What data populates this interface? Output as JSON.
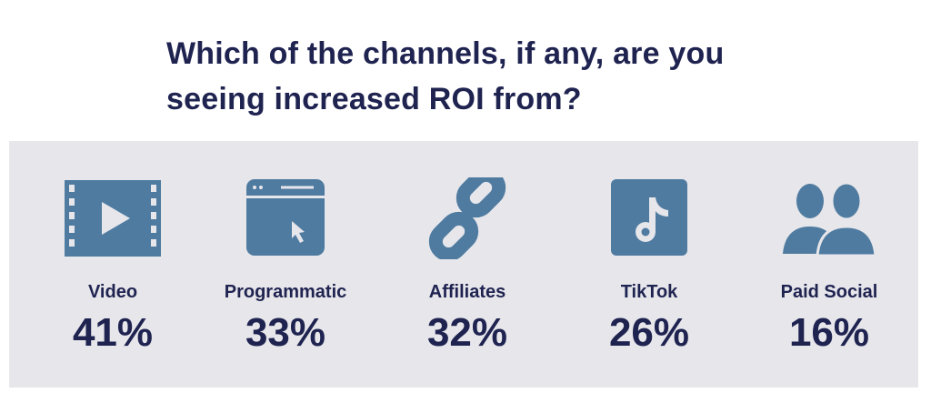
{
  "title": "Which of the channels, if any, are you seeing increased ROI from?",
  "colors": {
    "text": "#1f2350",
    "icon": "#4f7ba0",
    "panel": "#e6e6eb"
  },
  "chart_data": {
    "type": "bar",
    "title": "Which of the channels, if any, are you seeing increased ROI from?",
    "categories": [
      "Video",
      "Programmatic",
      "Affiliates",
      "TikTok",
      "Paid Social"
    ],
    "values": [
      41,
      33,
      32,
      26,
      16
    ],
    "value_labels": [
      "41%",
      "33%",
      "32%",
      "26%",
      "16%"
    ],
    "icons": [
      "video-icon",
      "browser-cursor-icon",
      "link-icon",
      "tiktok-icon",
      "people-icon"
    ],
    "unit": "%"
  }
}
